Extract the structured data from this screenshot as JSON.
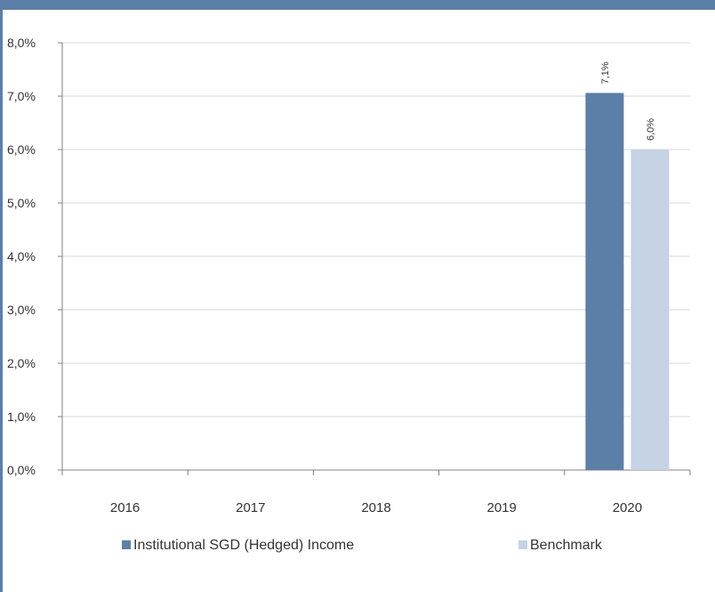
{
  "chart_data": {
    "type": "bar",
    "categories": [
      "2016",
      "2017",
      "2018",
      "2019",
      "2020"
    ],
    "series": [
      {
        "name": "Institutional SGD (Hedged) Income",
        "color": "#5b7fa6",
        "values": [
          null,
          null,
          null,
          null,
          7.06
        ],
        "labels": [
          "",
          "",
          "",
          "",
          "7,1%"
        ]
      },
      {
        "name": "Benchmark",
        "color": "#c5d3e4",
        "values": [
          null,
          null,
          null,
          null,
          6.0
        ],
        "labels": [
          "",
          "",
          "",
          "",
          "6,0%"
        ]
      }
    ],
    "yticks": [
      "0,0%",
      "1,0%",
      "2,0%",
      "3,0%",
      "4,0%",
      "5,0%",
      "6,0%",
      "7,0%",
      "8,0%"
    ],
    "ylim": [
      0,
      8
    ],
    "grid": true,
    "legend_position": "bottom"
  }
}
